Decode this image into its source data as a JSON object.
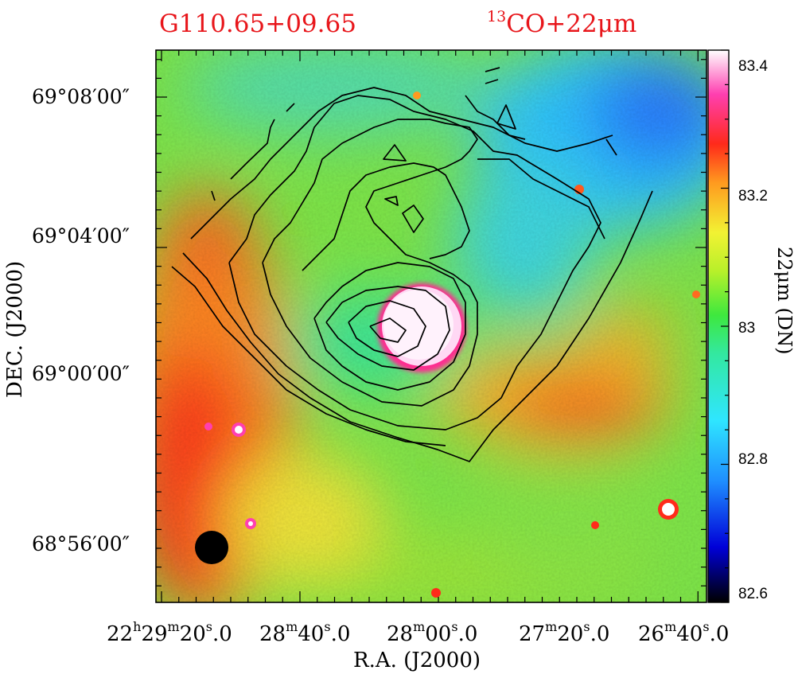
{
  "chart_data": {
    "type": "heatmap",
    "title_left": "G110.65+09.65",
    "title_right": "^13CO+22μm",
    "xlabel": "R.A. (J2000)",
    "ylabel": "DEC. (J2000)",
    "colorbar_label": "22μm (DN)",
    "colorbar_ticks": [
      "83.4",
      "83.2",
      "83",
      "82.8",
      "82.6"
    ],
    "colorbar_range": [
      82.6,
      83.4
    ],
    "x_ticks": [
      {
        "h": "22",
        "m": "29",
        "s": "20",
        "frac": "0"
      },
      {
        "h": "",
        "m": "28",
        "s": "40",
        "frac": "0"
      },
      {
        "h": "",
        "m": "28",
        "s": "00",
        "frac": "0"
      },
      {
        "h": "",
        "m": "27",
        "s": "20",
        "frac": "0"
      },
      {
        "h": "",
        "m": "26",
        "s": "40",
        "frac": "0"
      }
    ],
    "y_ticks": [
      "69°08′00″",
      "69°04′00″",
      "69°00′00″",
      "68°56′00″"
    ],
    "colormap": [
      "#000000",
      "#2a2aff",
      "#22b8ff",
      "#33e8e8",
      "#3ee83e",
      "#bdf02a",
      "#f2f233",
      "#ff9a1f",
      "#ff2a1a",
      "#ff3fb0",
      "#ffffff"
    ],
    "contour_color": "#000000",
    "beam": "filled circle, lower-left",
    "image_description_note": ""
  }
}
